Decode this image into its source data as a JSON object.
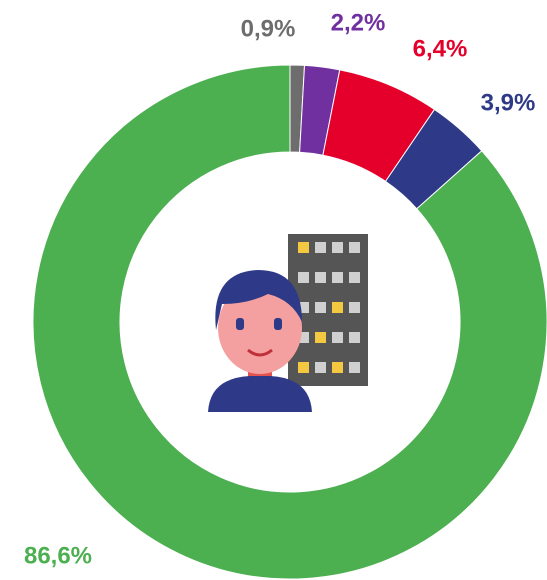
{
  "chart_data": {
    "type": "donut",
    "values": [
      0.9,
      2.2,
      6.4,
      3.9,
      86.6
    ],
    "value_labels": [
      "0,9%",
      "2,2%",
      "6,4%",
      "3,9%",
      "86,6%"
    ],
    "colors": [
      "#6d6d6d",
      "#7030a0",
      "#e4002b",
      "#2e3a87",
      "#4caf50"
    ]
  }
}
